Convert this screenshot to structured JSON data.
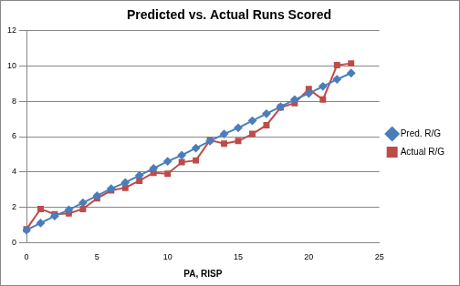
{
  "chart_data": {
    "type": "line",
    "title": "Predicted vs. Actual Runs Scored",
    "x_label": "PA, RISP",
    "x": [
      0,
      1,
      2,
      3,
      4,
      5,
      6,
      7,
      8,
      9,
      10,
      11,
      12,
      13,
      14,
      15,
      16,
      17,
      18,
      19,
      20,
      21,
      22,
      23
    ],
    "series": [
      {
        "name": "Pred. R/G",
        "color": "#4a7ebb",
        "marker": "diamond",
        "values": [
          0.7,
          1.1,
          1.5,
          1.85,
          2.25,
          2.65,
          3.05,
          3.4,
          3.8,
          4.2,
          4.6,
          4.95,
          5.35,
          5.75,
          6.15,
          6.5,
          6.9,
          7.3,
          7.7,
          8.1,
          8.45,
          8.85,
          9.25,
          9.6
        ]
      },
      {
        "name": "Actual R/G",
        "color": "#be4b48",
        "marker": "square",
        "values": [
          0.75,
          1.9,
          1.6,
          1.65,
          1.9,
          2.5,
          2.95,
          3.1,
          3.5,
          3.95,
          3.9,
          4.55,
          4.65,
          5.8,
          5.6,
          5.75,
          6.15,
          6.65,
          7.65,
          7.9,
          8.7,
          8.1,
          10.05,
          10.15
        ]
      }
    ],
    "xlim": [
      0,
      25
    ],
    "xticks": [
      0,
      5,
      10,
      15,
      20,
      25
    ],
    "ylim": [
      0,
      12
    ],
    "yticks": [
      0,
      2,
      4,
      6,
      8,
      10,
      12
    ],
    "grid": true,
    "legend": "right"
  }
}
